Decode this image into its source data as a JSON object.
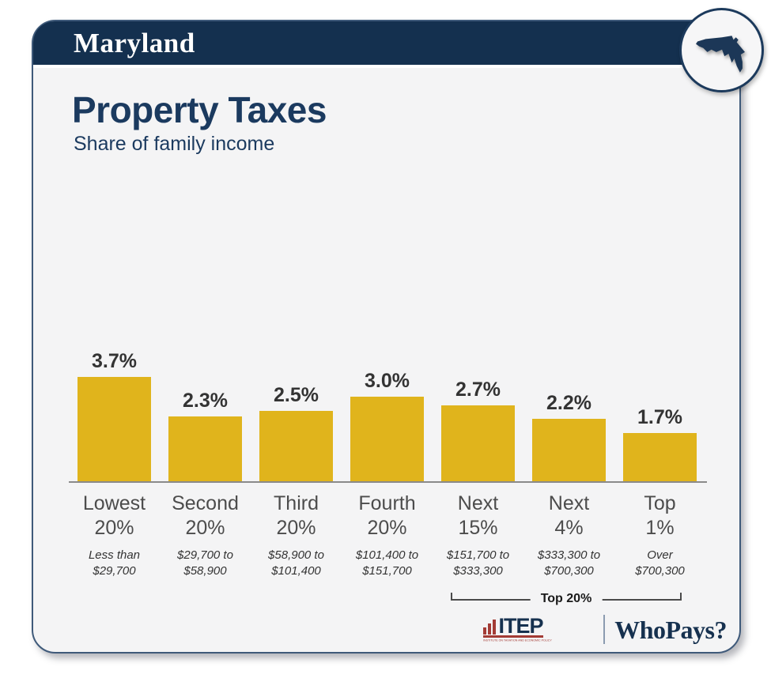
{
  "header": {
    "state": "Maryland"
  },
  "card": {
    "title": "Property Taxes",
    "subtitle": "Share of family income"
  },
  "chart_data": {
    "type": "bar",
    "title": "Property Taxes",
    "subtitle": "Share of family income",
    "categories": [
      "Lowest 20%",
      "Second 20%",
      "Third 20%",
      "Fourth 20%",
      "Next 15%",
      "Next 4%",
      "Top 1%"
    ],
    "categories_display": [
      [
        "Lowest",
        "20%"
      ],
      [
        "Second",
        "20%"
      ],
      [
        "Third",
        "20%"
      ],
      [
        "Fourth",
        "20%"
      ],
      [
        "Next",
        "15%"
      ],
      [
        "Next",
        "4%"
      ],
      [
        "Top",
        "1%"
      ]
    ],
    "income_display": [
      [
        "Less than",
        "$29,700"
      ],
      [
        "$29,700 to",
        "$58,900"
      ],
      [
        "$58,900 to",
        "$101,400"
      ],
      [
        "$101,400 to",
        "$151,700"
      ],
      [
        "$151,700 to",
        "$333,300"
      ],
      [
        "$333,300 to",
        "$700,300"
      ],
      [
        "Over",
        "$700,300"
      ]
    ],
    "values": [
      3.7,
      2.3,
      2.5,
      3.0,
      2.7,
      2.2,
      1.7
    ],
    "value_labels": [
      "3.7%",
      "2.3%",
      "2.5%",
      "3.0%",
      "2.7%",
      "2.2%",
      "1.7%"
    ],
    "unit": "%",
    "ylim": [
      0,
      4
    ],
    "grid": false,
    "legend": false,
    "bar_color": "#e0b41c",
    "annotation": {
      "label": "Top 20%",
      "spans": [
        "Next 15%",
        "Next 4%",
        "Top 1%"
      ]
    }
  },
  "footer": {
    "itep_label": "ITEP",
    "itep_tagline": "INSTITUTE ON TAXATION AND ECONOMIC POLICY",
    "whopays_label": "WhoPays?"
  },
  "colors": {
    "header_navy": "#14304f",
    "title_navy": "#1b3a5f",
    "bar_gold": "#e0b41c",
    "card_bg": "#f4f4f5",
    "itep_red": "#a33b35"
  }
}
